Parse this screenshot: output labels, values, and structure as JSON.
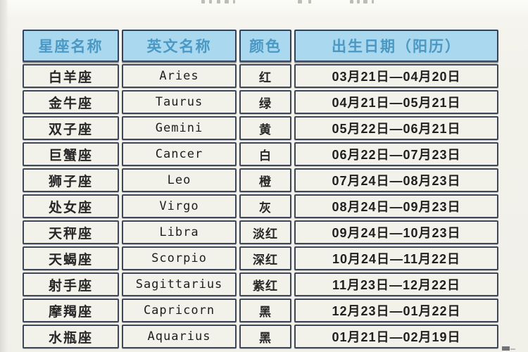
{
  "theme": {
    "border_color": "#3d4757",
    "header_bg": "#a9d8ef",
    "header_text": "#4a98c4",
    "cell_bg": "#f2f1ea",
    "cell_text": "#262626"
  },
  "table": {
    "headers": [
      "星座名称",
      "英文名称",
      "颜色",
      "出生日期（阳历）"
    ],
    "rows": [
      {
        "name": "白羊座",
        "english": "Aries",
        "color": "红",
        "dates": "03月21日—04月20日"
      },
      {
        "name": "金牛座",
        "english": "Taurus",
        "color": "绿",
        "dates": "04月21日—05月21日"
      },
      {
        "name": "双子座",
        "english": "Gemini",
        "color": "黄",
        "dates": "05月22日—06月21日"
      },
      {
        "name": "巨蟹座",
        "english": "Cancer",
        "color": "白",
        "dates": "06月22日—07月23日"
      },
      {
        "name": "狮子座",
        "english": "Leo",
        "color": "橙",
        "dates": "07月24日—08月23日"
      },
      {
        "name": "处女座",
        "english": "Virgo",
        "color": "灰",
        "dates": "08月24日—09月23日"
      },
      {
        "name": "天秤座",
        "english": "Libra",
        "color": "淡红",
        "dates": "09月24日—10月23日"
      },
      {
        "name": "天蝎座",
        "english": "Scorpio",
        "color": "深红",
        "dates": "10月24日—11月22日"
      },
      {
        "name": "射手座",
        "english": "Sagittarius",
        "color": "紫红",
        "dates": "11月23日—12月22日"
      },
      {
        "name": "摩羯座",
        "english": "Capricorn",
        "color": "黑",
        "dates": "12月23日—01月22日"
      },
      {
        "name": "水瓶座",
        "english": "Aquarius",
        "color": "黑",
        "dates": "01月21日—02月19日"
      }
    ]
  }
}
